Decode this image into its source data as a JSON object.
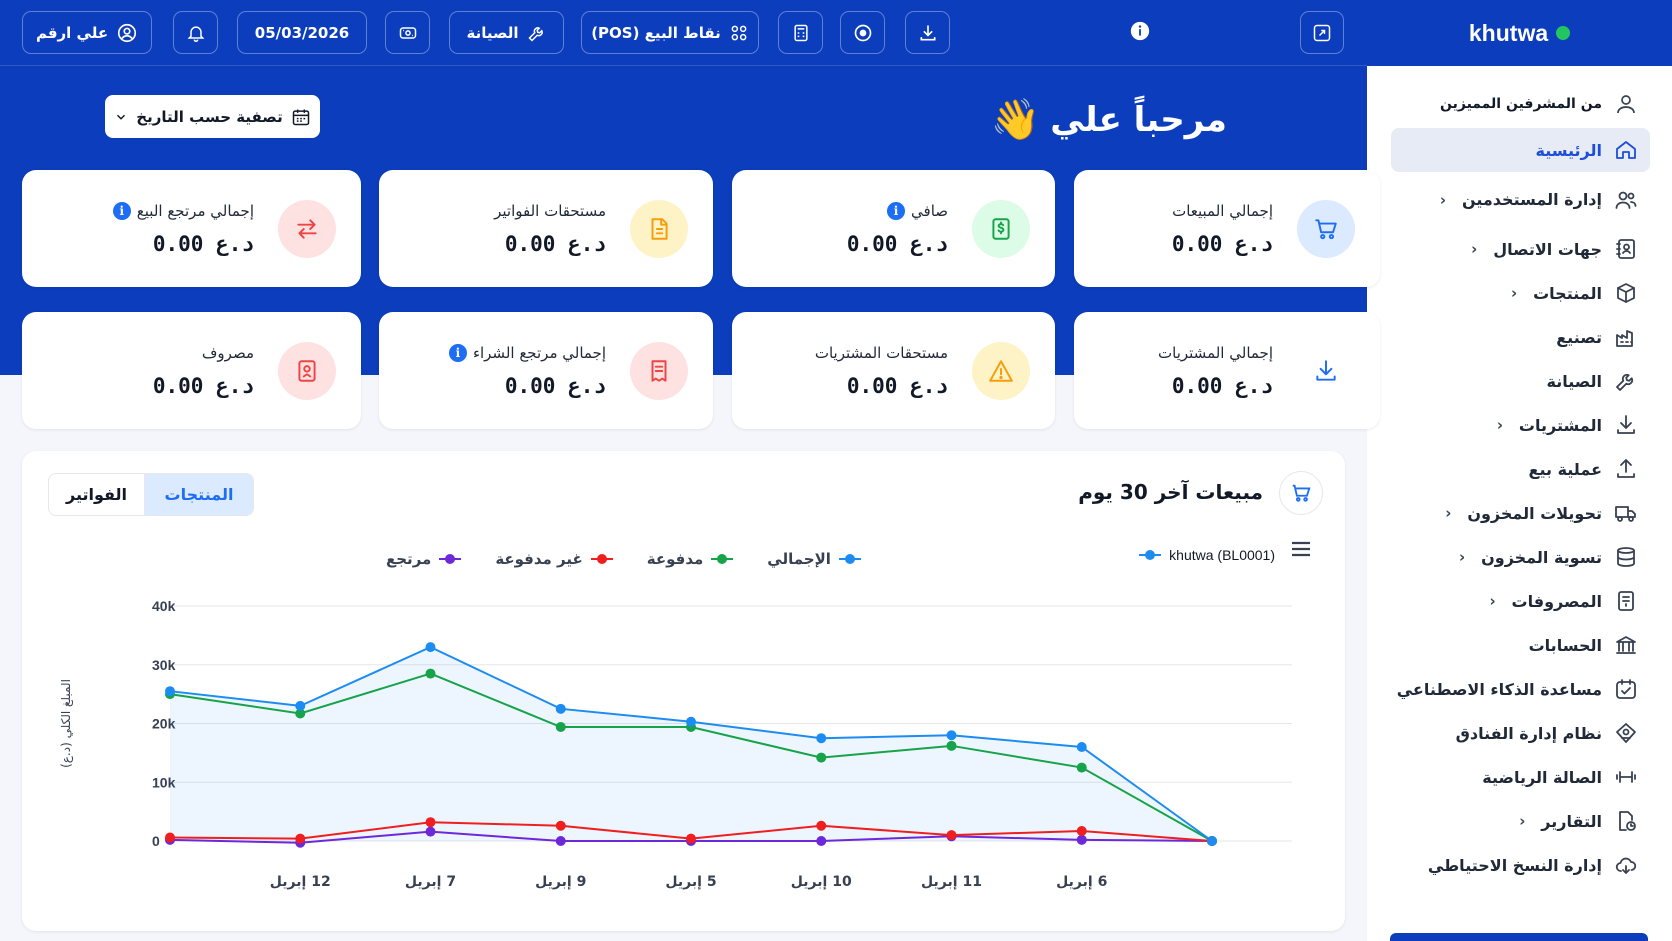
{
  "brand": {
    "name": "khutwa",
    "status_color": "#22c55e"
  },
  "sidebar": {
    "user_label": "من المشرفين المميزين",
    "items": [
      {
        "label": "الرئيسية",
        "icon": "home-icon",
        "active": true,
        "chevron": false
      },
      {
        "label": "إدارة المستخدمين",
        "icon": "users-icon",
        "chevron": true
      },
      {
        "label": "جهات الاتصال",
        "icon": "contacts-icon",
        "chevron": true
      },
      {
        "label": "المنتجات",
        "icon": "box-icon",
        "chevron": true
      },
      {
        "label": "تصنيع",
        "icon": "factory-icon",
        "chevron": false
      },
      {
        "label": "الصيانة",
        "icon": "wrench-icon",
        "chevron": false
      },
      {
        "label": "المشتريات",
        "icon": "download-icon",
        "chevron": true
      },
      {
        "label": "عملية بيع",
        "icon": "upload-icon",
        "chevron": false
      },
      {
        "label": "تحويلات المخزون",
        "icon": "truck-icon",
        "chevron": true
      },
      {
        "label": "تسوية المخزون",
        "icon": "database-icon",
        "chevron": true
      },
      {
        "label": "المصروفات",
        "icon": "receipt-icon",
        "chevron": true
      },
      {
        "label": "الحسابات",
        "icon": "bank-icon",
        "chevron": false
      },
      {
        "label": "مساعدة الذكاء الاصطناعي",
        "icon": "ai-calendar-icon",
        "chevron": false
      },
      {
        "label": "نظام إدارة الفنادق",
        "icon": "hotel-icon",
        "chevron": false
      },
      {
        "label": "الصالة الرياضية",
        "icon": "dumbbell-icon",
        "chevron": false
      },
      {
        "label": "التقارير",
        "icon": "report-icon",
        "chevron": true
      },
      {
        "label": "إدارة النسخ الاحتياطي",
        "icon": "cloud-backup-icon",
        "chevron": false
      }
    ]
  },
  "topbar": {
    "user_name": "علي ارقم",
    "date": "05/03/2026",
    "maintenance_label": "الصيانة",
    "pos_label": "نقاط البيع (POS)"
  },
  "welcome": {
    "text": "مرحباً علي",
    "emoji": "👋"
  },
  "date_filter": {
    "label": "تصفية حسب التاريخ"
  },
  "stats": [
    {
      "title": "إجمالي المبيعات",
      "value": "0.00",
      "currency": "د.ع",
      "icon": "cart-icon",
      "color": "#1d6ef5",
      "bg": "#dbeafe",
      "info": false
    },
    {
      "title": "صافي",
      "value": "0.00",
      "currency": "د.ع",
      "icon": "money-icon",
      "color": "#16a34a",
      "bg": "#dcfce7",
      "info": true
    },
    {
      "title": "مستحقات الفواتير",
      "value": "0.00",
      "currency": "د.ع",
      "icon": "invoice-icon",
      "color": "#f59e0b",
      "bg": "#fef3c7",
      "info": false
    },
    {
      "title": "إجمالي مرتجع البيع",
      "value": "0.00",
      "currency": "د.ع",
      "icon": "swap-icon",
      "color": "#ef4444",
      "bg": "#fee2e2",
      "info": true
    },
    {
      "title": "إجمالي المشتريات",
      "value": "0.00",
      "currency": "د.ع",
      "icon": "download-icon",
      "color": "#1d6ef5",
      "bg": "#ffffff",
      "info": false
    },
    {
      "title": "مستحقات المشتريات",
      "value": "0.00",
      "currency": "د.ع",
      "icon": "warning-icon",
      "color": "#f59e0b",
      "bg": "#fef3c7",
      "info": false
    },
    {
      "title": "إجمالي مرتجع الشراء",
      "value": "0.00",
      "currency": "د.ع",
      "icon": "return-receipt-icon",
      "color": "#ef4444",
      "bg": "#fee2e2",
      "info": true
    },
    {
      "title": "مصروف",
      "value": "0.00",
      "currency": "د.ع",
      "icon": "expense-icon",
      "color": "#ef4444",
      "bg": "#fee2e2",
      "info": false
    }
  ],
  "panel": {
    "title": "مبيعات آخر 30 يوم",
    "tabs": [
      "المنتجات",
      "الفواتير"
    ],
    "active_tab": "المنتجات",
    "store_legend": "khutwa (BL0001)"
  },
  "chart_data": {
    "type": "line",
    "ylabel": "المبلغ الكلي (د.ع)",
    "ylim": [
      0,
      40000
    ],
    "yticks": [
      0,
      10000,
      20000,
      30000,
      40000
    ],
    "ytick_labels": [
      "0",
      "10k",
      "20k",
      "30k",
      "40k"
    ],
    "x": [
      "",
      "12 إبريل",
      "7 إبريل",
      "9 إبريل",
      "5 إبريل",
      "10 إبريل",
      "11 إبريل",
      "6 إبريل",
      ""
    ],
    "legend_position": "top",
    "grid": true,
    "series": [
      {
        "name": "الإجمالي",
        "color": "#1d8cf0",
        "values": [
          25500,
          23000,
          33000,
          22500,
          20300,
          17500,
          18000,
          16000,
          0
        ]
      },
      {
        "name": "مدفوعة",
        "color": "#16a34a",
        "values": [
          25000,
          21700,
          28500,
          19400,
          19400,
          14200,
          16200,
          12500,
          0
        ]
      },
      {
        "name": "غير مدفوعة",
        "color": "#ef1f1f",
        "values": [
          600,
          400,
          3200,
          2600,
          400,
          2600,
          1000,
          1700,
          0
        ]
      },
      {
        "name": "مرتجع",
        "color": "#6d28d9",
        "values": [
          200,
          -300,
          1600,
          0,
          0,
          0,
          800,
          200,
          0
        ]
      }
    ]
  }
}
